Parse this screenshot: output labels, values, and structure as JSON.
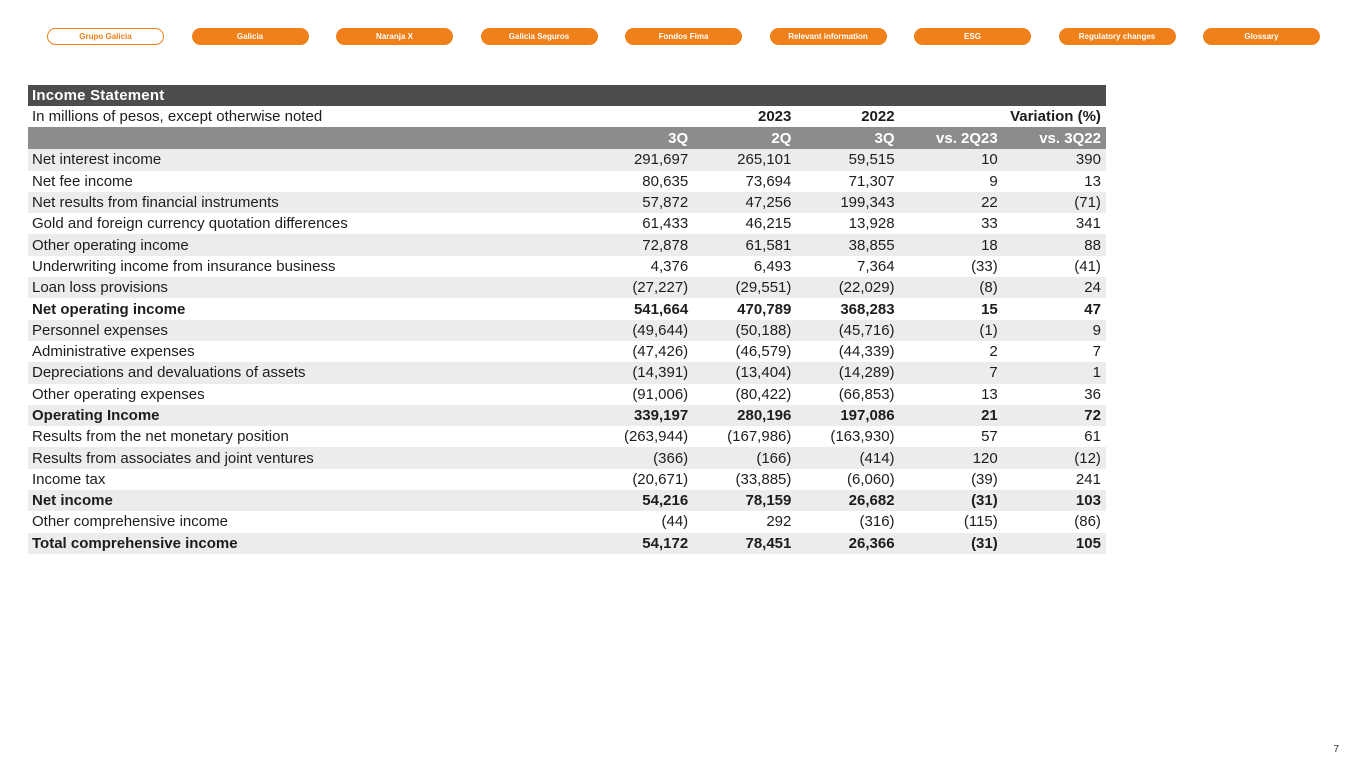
{
  "nav": {
    "items": [
      {
        "label": "Grupo Galicia",
        "active": true
      },
      {
        "label": "Galicia",
        "active": false
      },
      {
        "label": "Naranja X",
        "active": false
      },
      {
        "label": "Galicia Seguros",
        "active": false
      },
      {
        "label": "Fondos Fima",
        "active": false
      },
      {
        "label": "Relevant information",
        "active": false
      },
      {
        "label": "ESG",
        "active": false
      },
      {
        "label": "Regulatory changes",
        "active": false
      },
      {
        "label": "Glossary",
        "active": false
      }
    ]
  },
  "table": {
    "title": "Income Statement",
    "subtitle": "In millions of pesos, except otherwise noted",
    "year_headers": [
      "2023",
      "2022",
      "Variation (%)"
    ],
    "column_headers": [
      "3Q",
      "2Q",
      "3Q",
      "vs. 2Q23",
      "vs. 3Q22"
    ],
    "rows": [
      {
        "label": "Net interest income",
        "values": [
          "291,697",
          "265,101",
          "59,515",
          "10",
          "390"
        ],
        "bold": false
      },
      {
        "label": "Net fee income",
        "values": [
          "80,635",
          "73,694",
          "71,307",
          "9",
          "13"
        ],
        "bold": false
      },
      {
        "label": "Net results from financial instruments",
        "values": [
          "57,872",
          "47,256",
          "199,343",
          "22",
          "(71)"
        ],
        "bold": false
      },
      {
        "label": "Gold and foreign currency quotation differences",
        "values": [
          "61,433",
          "46,215",
          "13,928",
          "33",
          "341"
        ],
        "bold": false
      },
      {
        "label": "Other operating income",
        "values": [
          "72,878",
          "61,581",
          "38,855",
          "18",
          "88"
        ],
        "bold": false
      },
      {
        "label": "Underwriting income from insurance business",
        "values": [
          "4,376",
          "6,493",
          "7,364",
          "(33)",
          "(41)"
        ],
        "bold": false
      },
      {
        "label": "Loan loss provisions",
        "values": [
          "(27,227)",
          "(29,551)",
          "(22,029)",
          "(8)",
          "24"
        ],
        "bold": false
      },
      {
        "label": "Net operating income",
        "values": [
          "541,664",
          "470,789",
          "368,283",
          "15",
          "47"
        ],
        "bold": true
      },
      {
        "label": "Personnel expenses",
        "values": [
          "(49,644)",
          "(50,188)",
          "(45,716)",
          "(1)",
          "9"
        ],
        "bold": false
      },
      {
        "label": "Administrative expenses",
        "values": [
          "(47,426)",
          "(46,579)",
          "(44,339)",
          "2",
          "7"
        ],
        "bold": false
      },
      {
        "label": "Depreciations and devaluations of assets",
        "values": [
          "(14,391)",
          "(13,404)",
          "(14,289)",
          "7",
          "1"
        ],
        "bold": false
      },
      {
        "label": "Other operating expenses",
        "values": [
          "(91,006)",
          "(80,422)",
          "(66,853)",
          "13",
          "36"
        ],
        "bold": false
      },
      {
        "label": "Operating Income",
        "values": [
          "339,197",
          "280,196",
          "197,086",
          "21",
          "72"
        ],
        "bold": true
      },
      {
        "label": "Results from the net monetary position",
        "values": [
          "(263,944)",
          "(167,986)",
          "(163,930)",
          "57",
          "61"
        ],
        "bold": false
      },
      {
        "label": "Results from associates and joint ventures",
        "values": [
          "(366)",
          "(166)",
          "(414)",
          "120",
          "(12)"
        ],
        "bold": false
      },
      {
        "label": "Income tax",
        "values": [
          "(20,671)",
          "(33,885)",
          "(6,060)",
          "(39)",
          "241"
        ],
        "bold": false
      },
      {
        "label": "Net income",
        "values": [
          "54,216",
          "78,159",
          "26,682",
          "(31)",
          "103"
        ],
        "bold": true
      },
      {
        "label": "Other comprehensive income",
        "values": [
          "(44)",
          "292",
          "(316)",
          "(115)",
          "(86)"
        ],
        "bold": false
      },
      {
        "label": "Total comprehensive income",
        "values": [
          "54,172",
          "78,451",
          "26,366",
          "(31)",
          "105"
        ],
        "bold": true
      }
    ]
  },
  "page_number": "7",
  "colors": {
    "accent": "#F08019",
    "title_bar": "#4D4D4D",
    "column_header_bg": "#8C8C8C",
    "row_stripe": "#ECECEC"
  }
}
